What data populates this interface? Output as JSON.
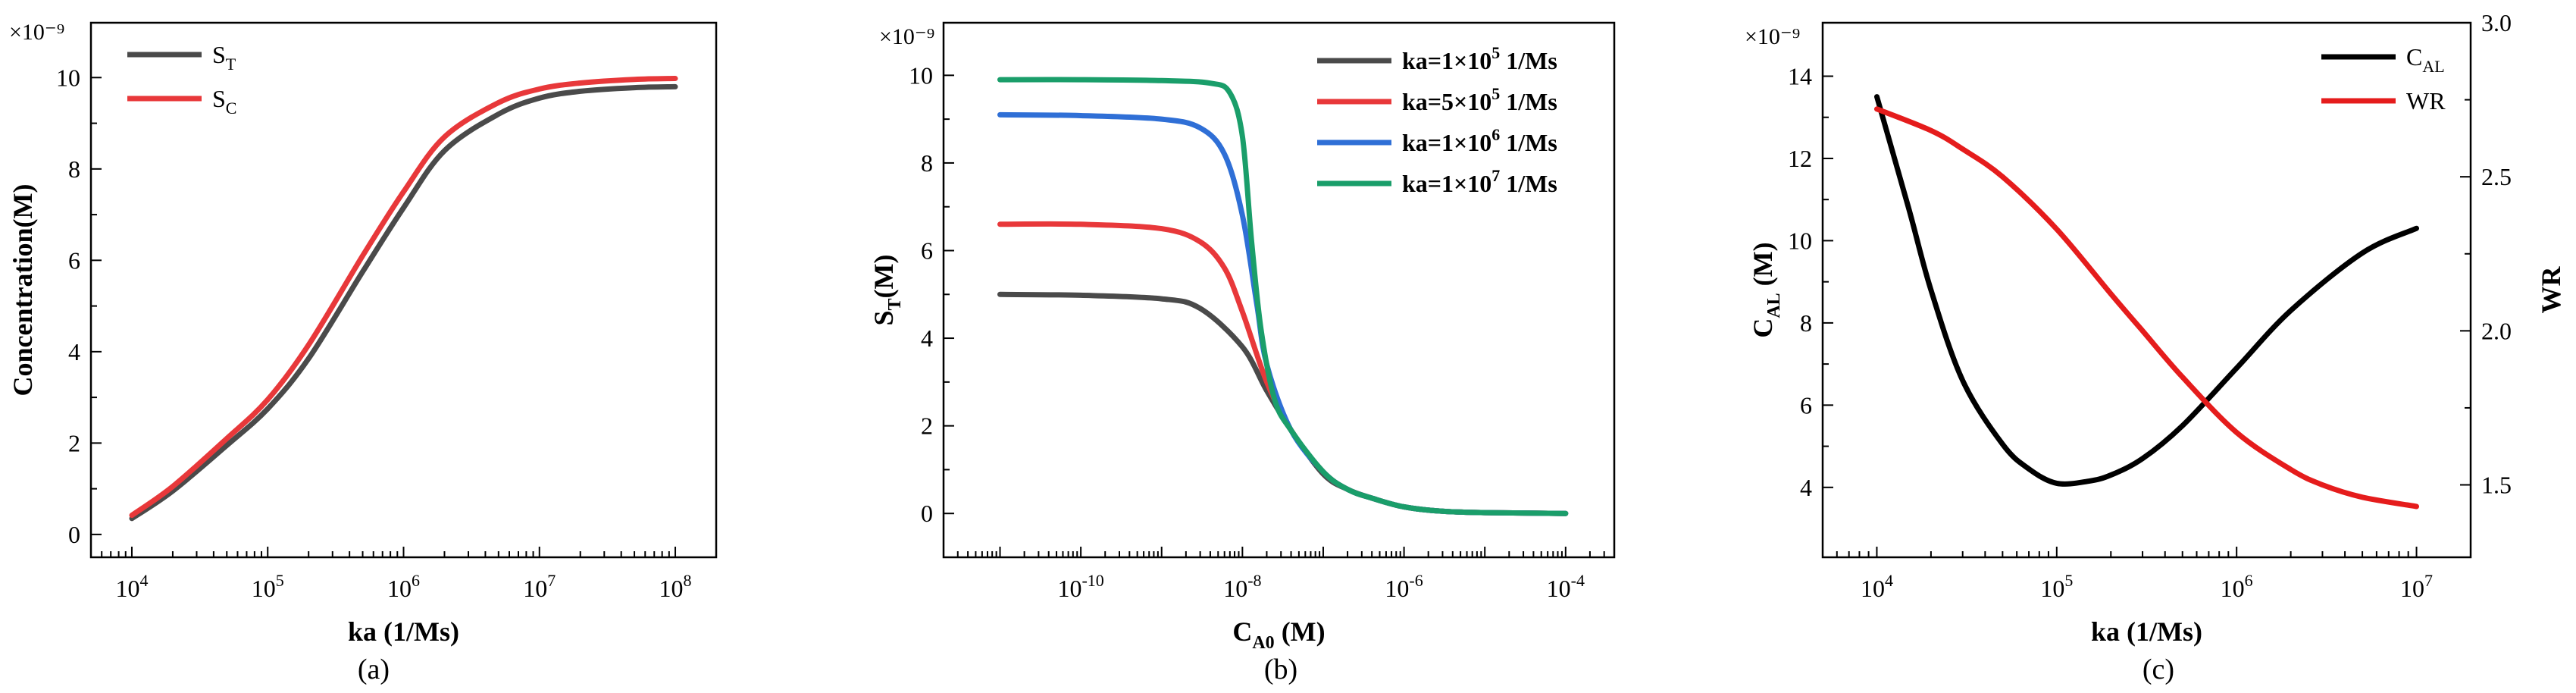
{
  "chart_data": [
    {
      "id": "a",
      "type": "line",
      "caption": "(a)",
      "xlabel": "ka (1/Ms)",
      "ylabel": "Concentration(M)",
      "xscale": "log",
      "xlim": [
        5000,
        200000000
      ],
      "ylim": [
        -0.5,
        11.2
      ],
      "yticks": [
        0,
        2,
        4,
        6,
        8,
        10
      ],
      "yticklabels": [
        "0",
        "2",
        "4",
        "6",
        "8",
        "10"
      ],
      "xticks": [
        10000,
        100000,
        1000000,
        10000000,
        100000000
      ],
      "xticklabels": [
        [
          "10",
          "4"
        ],
        [
          "10",
          "5"
        ],
        [
          "10",
          "6"
        ],
        [
          "10",
          "7"
        ],
        [
          "10",
          "8"
        ]
      ],
      "y_multiplier": "×10⁻⁹",
      "legend": "top-left",
      "series": [
        {
          "name": "S",
          "sub": "T",
          "color": "#4a4a4a",
          "axis": "left",
          "x": [
            10000,
            20000,
            50000,
            100000,
            200000,
            500000,
            1000000,
            2000000,
            5000000,
            10000000,
            20000000,
            50000000,
            100000000
          ],
          "y": [
            0.35,
            0.95,
            1.95,
            2.75,
            3.85,
            5.75,
            7.15,
            8.4,
            9.2,
            9.55,
            9.7,
            9.78,
            9.8
          ]
        },
        {
          "name": "S",
          "sub": "C",
          "color": "#e8383a",
          "axis": "left",
          "x": [
            10000,
            20000,
            50000,
            100000,
            200000,
            500000,
            1000000,
            2000000,
            5000000,
            10000000,
            20000000,
            50000000,
            100000000
          ],
          "y": [
            0.42,
            1.05,
            2.1,
            2.95,
            4.15,
            6.1,
            7.5,
            8.7,
            9.45,
            9.75,
            9.88,
            9.96,
            9.98
          ]
        }
      ]
    },
    {
      "id": "b",
      "type": "line",
      "caption": "(b)",
      "xlabel": "C",
      "xlabel_sub": "A0",
      "xlabel_suffix": " (M)",
      "ylabel": "S",
      "ylabel_sub": "T",
      "ylabel_suffix": "(M)",
      "xscale": "log",
      "xlim": [
        2e-12,
        0.0004
      ],
      "ylim": [
        -1,
        11.2
      ],
      "yticks": [
        0,
        2,
        4,
        6,
        8,
        10
      ],
      "yticklabels": [
        "0",
        "2",
        "4",
        "6",
        "8",
        "10"
      ],
      "xticks": [
        1e-10,
        1e-08,
        1e-06,
        0.0001
      ],
      "xticklabels": [
        [
          "10",
          "-10"
        ],
        [
          "10",
          "-8"
        ],
        [
          "10",
          "-6"
        ],
        [
          "10",
          "-4"
        ]
      ],
      "y_multiplier": "×10⁻⁹",
      "legend": "top-right",
      "series": [
        {
          "name": "ka=1×10",
          "sup": "5",
          "unit": " 1/Ms",
          "color": "#4a4a4a",
          "axis": "left",
          "x": [
            1e-11,
            1e-10,
            1e-09,
            3e-09,
            1e-08,
            2e-08,
            4e-08,
            1e-07,
            2e-07,
            4e-07,
            1e-06,
            3e-06,
            1e-05,
            0.0001
          ],
          "y": [
            5.0,
            4.98,
            4.9,
            4.68,
            3.8,
            2.8,
            1.9,
            0.9,
            0.55,
            0.35,
            0.15,
            0.05,
            0.02,
            0.0
          ]
        },
        {
          "name": "ka=5×10",
          "sup": "5",
          "unit": " 1/Ms",
          "color": "#e8383a",
          "axis": "left",
          "x": [
            1e-11,
            1e-10,
            1e-09,
            3e-09,
            6e-09,
            1e-08,
            2e-08,
            4e-08,
            1e-07,
            2e-07,
            4e-07,
            1e-06,
            3e-06,
            1e-05,
            0.0001
          ],
          "y": [
            6.6,
            6.6,
            6.5,
            6.2,
            5.6,
            4.6,
            3.0,
            1.9,
            0.95,
            0.55,
            0.35,
            0.15,
            0.05,
            0.02,
            0.0
          ]
        },
        {
          "name": "ka=1×10",
          "sup": "6",
          "unit": " 1/Ms",
          "color": "#2f6fd6",
          "axis": "left",
          "x": [
            1e-11,
            1e-10,
            1e-09,
            3e-09,
            6e-09,
            1e-08,
            1.5e-08,
            2e-08,
            4e-08,
            1e-07,
            2e-07,
            4e-07,
            1e-06,
            3e-06,
            1e-05,
            0.0001
          ],
          "y": [
            9.1,
            9.08,
            9.0,
            8.8,
            8.2,
            6.8,
            4.8,
            3.4,
            1.9,
            0.95,
            0.55,
            0.35,
            0.15,
            0.05,
            0.02,
            0.0
          ]
        },
        {
          "name": "ka=1×10",
          "sup": "7",
          "unit": " 1/Ms",
          "color": "#1a9e6a",
          "axis": "left",
          "x": [
            1e-11,
            1e-10,
            1e-09,
            4e-09,
            7e-09,
            1e-08,
            1.3e-08,
            1.7e-08,
            2.5e-08,
            4e-08,
            1e-07,
            2e-07,
            4e-07,
            1e-06,
            3e-06,
            1e-05,
            0.0001
          ],
          "y": [
            9.9,
            9.9,
            9.88,
            9.82,
            9.6,
            8.6,
            6.2,
            4.2,
            2.6,
            1.9,
            0.95,
            0.55,
            0.35,
            0.15,
            0.05,
            0.02,
            0.0
          ]
        }
      ]
    },
    {
      "id": "c",
      "type": "line",
      "caption": "(c)",
      "xlabel": "ka (1/Ms)",
      "ylabel": "C",
      "ylabel_sub": "AL",
      "ylabel_suffix": " (M)",
      "y2label": "WR",
      "xscale": "log",
      "xlim": [
        5000,
        20000000
      ],
      "ylim": [
        2.3,
        15.3
      ],
      "y2lim": [
        1.265,
        3.0
      ],
      "yticks": [
        4,
        6,
        8,
        10,
        12,
        14
      ],
      "yticklabels": [
        "4",
        "6",
        "8",
        "10",
        "12",
        "14"
      ],
      "y2ticks": [
        1.5,
        2.0,
        2.5,
        3.0
      ],
      "y2ticklabels": [
        "1.5",
        "2.0",
        "2.5",
        "3.0"
      ],
      "xticks": [
        10000,
        100000,
        1000000,
        10000000
      ],
      "xticklabels": [
        [
          "10",
          "4"
        ],
        [
          "10",
          "5"
        ],
        [
          "10",
          "6"
        ],
        [
          "10",
          "7"
        ]
      ],
      "y_multiplier": "×10⁻⁹",
      "legend": "top-right",
      "series": [
        {
          "name": "C",
          "sub": "AL",
          "color": "#000000",
          "axis": "left",
          "x": [
            10000,
            15000,
            20000,
            30000,
            50000,
            70000,
            100000,
            150000,
            200000,
            300000,
            500000,
            1000000,
            2000000,
            5000000,
            10000000
          ],
          "y": [
            13.5,
            10.8,
            8.8,
            6.6,
            5.05,
            4.45,
            4.1,
            4.15,
            4.3,
            4.7,
            5.5,
            6.9,
            8.3,
            9.7,
            10.3
          ]
        },
        {
          "name": "WR",
          "color": "#e51c1c",
          "axis": "right",
          "x": [
            10000,
            20000,
            30000,
            50000,
            100000,
            200000,
            300000,
            500000,
            1000000,
            2000000,
            3000000,
            5000000,
            10000000
          ],
          "y": [
            2.72,
            2.65,
            2.59,
            2.5,
            2.33,
            2.12,
            2.0,
            1.85,
            1.67,
            1.55,
            1.5,
            1.46,
            1.43
          ]
        }
      ]
    }
  ]
}
